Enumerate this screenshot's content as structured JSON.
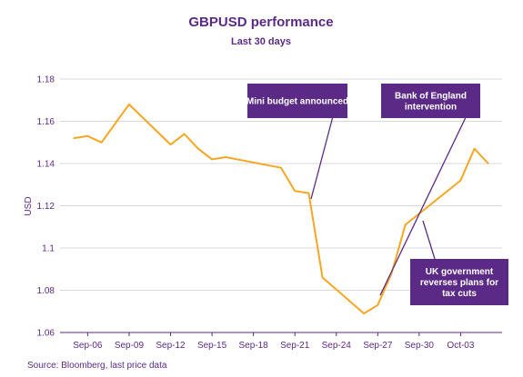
{
  "chart_data": {
    "type": "line",
    "title": "GBPUSD performance",
    "subtitle": "Last 30 days",
    "ylabel": "USD",
    "xlabel": "",
    "ylim": [
      1.06,
      1.18
    ],
    "y_ticks": [
      "1.06",
      "1.08",
      "1.1",
      "1.12",
      "1.14",
      "1.16",
      "1.18"
    ],
    "x_ticks": [
      "Sep-06",
      "Sep-09",
      "Sep-12",
      "Sep-15",
      "Sep-18",
      "Sep-21",
      "Sep-24",
      "Sep-27",
      "Sep-30",
      "Oct-03"
    ],
    "grid": "horizontal",
    "colors": {
      "line": "#f5a623",
      "accent": "#5b2a86",
      "grid": "#d9d9d9"
    },
    "series": [
      {
        "values": [
          [
            "2022-09-05",
            1.152
          ],
          [
            "2022-09-06",
            1.153
          ],
          [
            "2022-09-07",
            1.15
          ],
          [
            "2022-09-08",
            1.159
          ],
          [
            "2022-09-09",
            1.168
          ],
          [
            "2022-09-12",
            1.149
          ],
          [
            "2022-09-13",
            1.154
          ],
          [
            "2022-09-14",
            1.147
          ],
          [
            "2022-09-15",
            1.142
          ],
          [
            "2022-09-16",
            1.143
          ],
          [
            "2022-09-20",
            1.138
          ],
          [
            "2022-09-21",
            1.127
          ],
          [
            "2022-09-22",
            1.126
          ],
          [
            "2022-09-23",
            1.086
          ],
          [
            "2022-09-26",
            1.069
          ],
          [
            "2022-09-27",
            1.073
          ],
          [
            "2022-09-28",
            1.088
          ],
          [
            "2022-09-29",
            1.111
          ],
          [
            "2022-10-03",
            1.132
          ],
          [
            "2022-10-04",
            1.147
          ],
          [
            "2022-10-05",
            1.14
          ]
        ]
      }
    ],
    "annotations": [
      {
        "text": "Mini budget announced",
        "date": "2022-09-22",
        "value": 1.123
      },
      {
        "text": "Bank of England\nintervention",
        "date": "2022-09-27",
        "value": 1.077
      },
      {
        "text": "UK government\nreverses plans for\ntax cuts",
        "date": "2022-10-01",
        "value": 1.124
      }
    ]
  },
  "footer": {
    "source": "Source: Bloomberg, last price data"
  }
}
